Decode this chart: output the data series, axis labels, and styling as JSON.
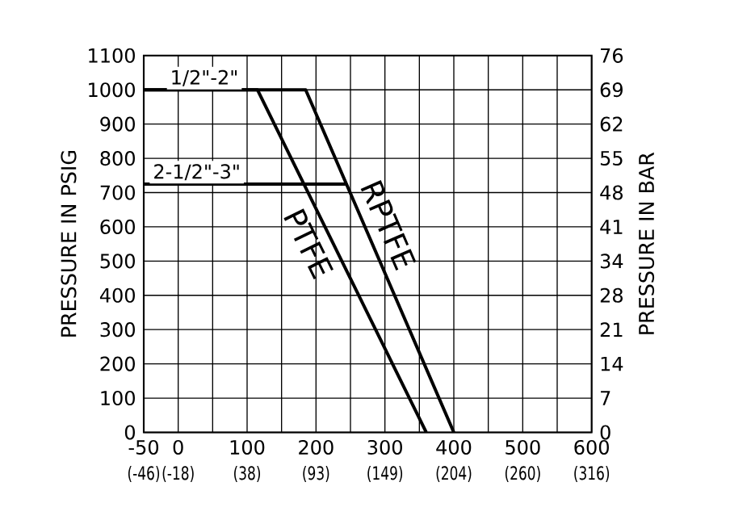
{
  "chart_data": {
    "type": "line",
    "ylabel": "PRESSURE IN PSIG",
    "y2label": "PRESSURE IN BAR",
    "series": [
      {
        "name": "PTFE",
        "color": "#000000",
        "x": [
          -50,
          115,
          360
        ],
        "values": [
          1000,
          1000,
          0
        ]
      },
      {
        "name": "RPTFE",
        "color": "#000000",
        "x": [
          -50,
          185,
          400
        ],
        "values": [
          1000,
          1000,
          0
        ]
      },
      {
        "color": "#000000",
        "x": [
          -50,
          243
        ],
        "values": [
          725,
          725
        ]
      }
    ],
    "annotations": [
      {
        "text": "1/2\"-2\"",
        "x": -17,
        "y": 1000
      },
      {
        "text": "2-1/2\"-3\"",
        "x": -42,
        "y": 725
      }
    ],
    "xlim": [
      -50,
      600
    ],
    "ylim": [
      0,
      1100
    ],
    "xticks": [
      -50,
      0,
      {
        "value": 50,
        "label": null
      },
      100,
      {
        "value": 150,
        "label": null
      },
      200,
      {
        "value": 250,
        "label": null
      },
      300,
      {
        "value": 350,
        "label": null
      },
      400,
      {
        "value": 450,
        "label": null
      },
      500,
      {
        "value": 550,
        "label": null
      },
      600
    ],
    "yticks": [
      0,
      100,
      200,
      300,
      400,
      500,
      600,
      700,
      800,
      900,
      1000,
      1100
    ],
    "x2lim": [
      -45.56,
      315.56
    ],
    "x2ticks": [
      {
        "value": -45.56,
        "label": "(-46)"
      },
      {
        "value": -17.78,
        "label": "(-18)"
      },
      {
        "value": 37.78,
        "label": "(38)"
      },
      {
        "value": 93.33,
        "label": "(93)"
      },
      {
        "value": 148.89,
        "label": "(149)"
      },
      {
        "value": 204.44,
        "label": "(204)"
      },
      {
        "value": 260,
        "label": "(260)"
      },
      {
        "value": 315.56,
        "label": "(316)"
      }
    ],
    "y2lim": [
      0,
      75.84
    ],
    "y2ticks": [
      {
        "value": 0,
        "label": "0"
      },
      {
        "value": 6.89,
        "label": "7"
      },
      {
        "value": 13.79,
        "label": "14"
      },
      {
        "value": 20.68,
        "label": "21"
      },
      {
        "value": 27.58,
        "label": "28"
      },
      {
        "value": 34.47,
        "label": "34"
      },
      {
        "value": 41.37,
        "label": "41"
      },
      {
        "value": 48.26,
        "label": "48"
      },
      {
        "value": 55.16,
        "label": "55"
      },
      {
        "value": 62.05,
        "label": "62"
      },
      {
        "value": 68.95,
        "label": "69"
      },
      {
        "value": 75.84,
        "label": "76"
      }
    ],
    "grid": true
  }
}
